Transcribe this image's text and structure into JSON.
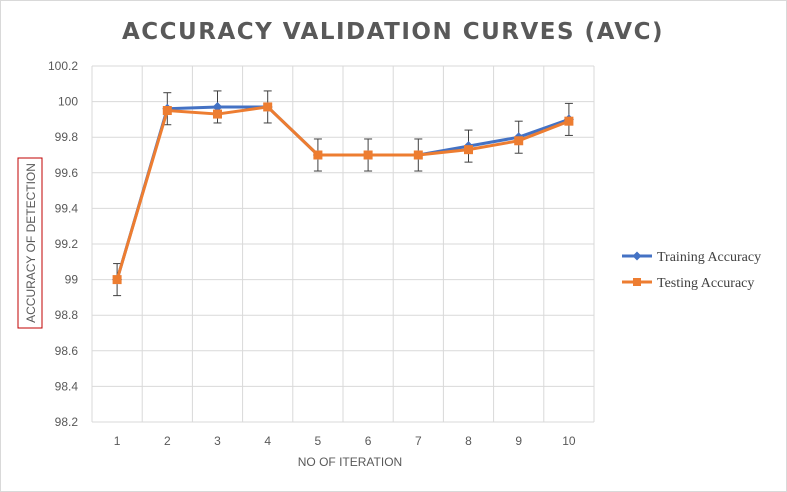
{
  "chart_data": {
    "type": "line",
    "title": "ACCURACY VALIDATION CURVES (AVC)",
    "xlabel": "NO OF ITERATION",
    "ylabel": "ACCURACY OF DETECTION",
    "categories": [
      "1",
      "2",
      "3",
      "4",
      "5",
      "6",
      "7",
      "8",
      "9",
      "10"
    ],
    "ylim": [
      98.2,
      100.2
    ],
    "yticks": [
      "98.2",
      "98.4",
      "98.6",
      "98.8",
      "99",
      "99.2",
      "99.4",
      "99.6",
      "99.8",
      "100",
      "100.2"
    ],
    "grid": true,
    "legend_position": "right",
    "error_bar": 0.09,
    "series": [
      {
        "name": "Training Accuracy",
        "color": "#4472c4",
        "marker": "diamond",
        "values": [
          99.0,
          99.96,
          99.97,
          99.97,
          99.7,
          99.7,
          99.7,
          99.75,
          99.8,
          99.9
        ]
      },
      {
        "name": "Testing Accuracy",
        "color": "#ed7d31",
        "marker": "square",
        "values": [
          99.0,
          99.95,
          99.93,
          99.97,
          99.7,
          99.7,
          99.7,
          99.73,
          99.78,
          99.89
        ]
      }
    ]
  }
}
